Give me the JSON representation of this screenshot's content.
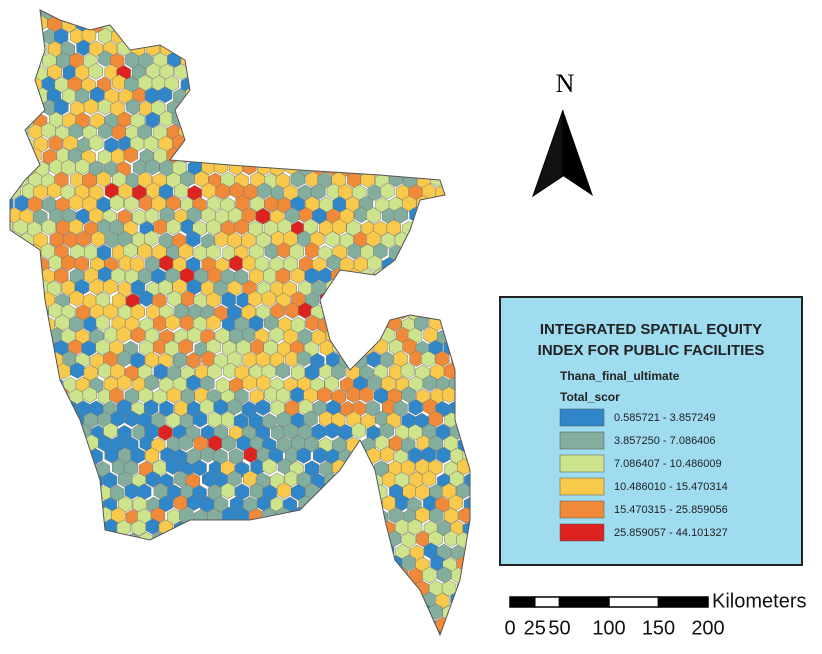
{
  "north_arrow": {
    "label": "N"
  },
  "legend": {
    "title": [
      "INTEGRATED SPATIAL EQUITY",
      "INDEX FOR PUBLIC FACILITIES"
    ],
    "layer": "Thana_final_ultimate",
    "field": "Total_scor",
    "classes": [
      {
        "label": "0.585721 - 3.857249",
        "color": "#2f87c9"
      },
      {
        "label": "3.857250 - 7.086406",
        "color": "#83ad9c"
      },
      {
        "label": "7.086407 - 10.486009",
        "color": "#cde38c"
      },
      {
        "label": "10.486010 - 15.470314",
        "color": "#f8c94a"
      },
      {
        "label": "15.470315 - 25.859056",
        "color": "#f08a38"
      },
      {
        "label": "25.859057 - 44.101327",
        "color": "#dc2320"
      }
    ]
  },
  "scale_bar": {
    "unit": "Kilometers",
    "ticks": [
      0,
      25,
      50,
      100,
      150,
      200
    ]
  }
}
